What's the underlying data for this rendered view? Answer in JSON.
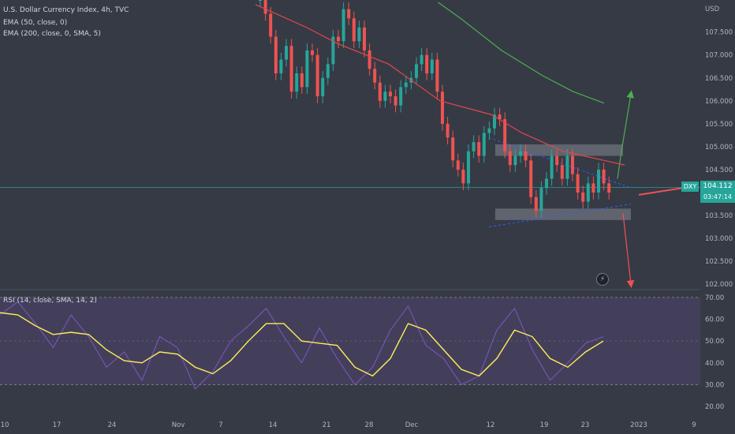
{
  "legend": {
    "title": "U.S. Dollar Currency Index, 4h, TVC",
    "ema50": "EMA (50, close, 0)",
    "ema200": "EMA (200, close, 0, SMA, 5)",
    "rsi": "RSI (14, close, SMA, 14, 2)"
  },
  "badge": {
    "symbol": "DXY",
    "price": "104.112",
    "countdown": "03:47:14"
  },
  "colors": {
    "background": "#363a45",
    "up": "#26a69a",
    "down": "#ef5350",
    "ema50": "#e04848",
    "ema200": "#4caf50",
    "rsi": "#7e57c2",
    "rsi_ma": "#ffee58",
    "rsi_band": "#7e57c2",
    "projection_up": "#4caf50",
    "projection_down": "#ef5350",
    "trendline": "#2962ff"
  },
  "icons": {
    "lightning": "lightning-icon"
  },
  "chart_data": [
    {
      "type": "candlestick",
      "title": "U.S. Dollar Currency Index, 4h, TVC",
      "currency": "USD",
      "ylim": [
        101.9,
        108.2
      ],
      "y_ticks": [
        "102.000",
        "102.500",
        "103.000",
        "103.500",
        "104.000",
        "104.500",
        "105.000",
        "105.500",
        "106.000",
        "106.500",
        "107.000",
        "107.500"
      ],
      "x_ticks": [
        "10",
        "17",
        "24",
        "Nov",
        "7",
        "14",
        "21",
        "28",
        "Dec",
        "12",
        "19",
        "23",
        "2023",
        "9"
      ],
      "last_price": 104.112,
      "grid": false,
      "series": [
        {
          "name": "EMA (50, close, 0)",
          "x": [
            0,
            50,
            80,
            130,
            180,
            230,
            260,
            300,
            360
          ],
          "values": [
            108.1,
            107.6,
            107.25,
            106.8,
            106.0,
            105.7,
            105.3,
            104.9,
            104.6
          ]
        },
        {
          "name": "EMA (200, close, 0, SMA, 5)",
          "x": [
            178,
            200,
            240,
            280,
            310,
            340
          ],
          "values": [
            108.15,
            107.8,
            107.1,
            106.55,
            106.2,
            105.95
          ]
        }
      ],
      "annotations": {
        "resistance_zone": [
          104.8,
          105.05
        ],
        "support_zone": [
          103.4,
          103.65
        ],
        "price_line": 104.112
      }
    },
    {
      "type": "line",
      "title": "RSI (14, close, SMA, 14, 2)",
      "ylim": [
        17.5,
        72.5
      ],
      "y_ticks": [
        "20.00",
        "30.00",
        "40.00",
        "50.00",
        "60.00",
        "70.00"
      ],
      "bands": [
        30,
        70
      ],
      "series": [
        {
          "name": "RSI",
          "x": [
            0,
            10,
            20,
            30,
            40,
            50,
            60,
            70,
            80,
            90,
            100,
            110,
            120,
            130,
            140,
            150,
            160,
            170,
            180,
            190,
            200,
            210,
            220,
            230,
            240,
            250,
            260,
            270,
            280,
            290,
            300,
            310,
            320,
            330,
            340
          ],
          "values": [
            62,
            68,
            58,
            47,
            62,
            52,
            38,
            45,
            32,
            52,
            47,
            28,
            36,
            50,
            57,
            65,
            52,
            40,
            56,
            42,
            30,
            38,
            55,
            66,
            48,
            42,
            30,
            34,
            55,
            65,
            46,
            32,
            40,
            49,
            52
          ]
        },
        {
          "name": "RSI MA",
          "x": [
            0,
            10,
            20,
            30,
            40,
            50,
            60,
            70,
            80,
            90,
            100,
            110,
            120,
            130,
            140,
            150,
            160,
            170,
            180,
            190,
            200,
            210,
            220,
            230,
            240,
            250,
            260,
            270,
            280,
            290,
            300,
            310,
            320,
            330,
            340
          ],
          "values": [
            63,
            62,
            57,
            53,
            54,
            53,
            46,
            41,
            40,
            45,
            44,
            38,
            35,
            41,
            50,
            58,
            58,
            50,
            49,
            48,
            38,
            34,
            42,
            58,
            55,
            46,
            37,
            34,
            42,
            55,
            52,
            42,
            38,
            45,
            50
          ]
        }
      ]
    }
  ]
}
